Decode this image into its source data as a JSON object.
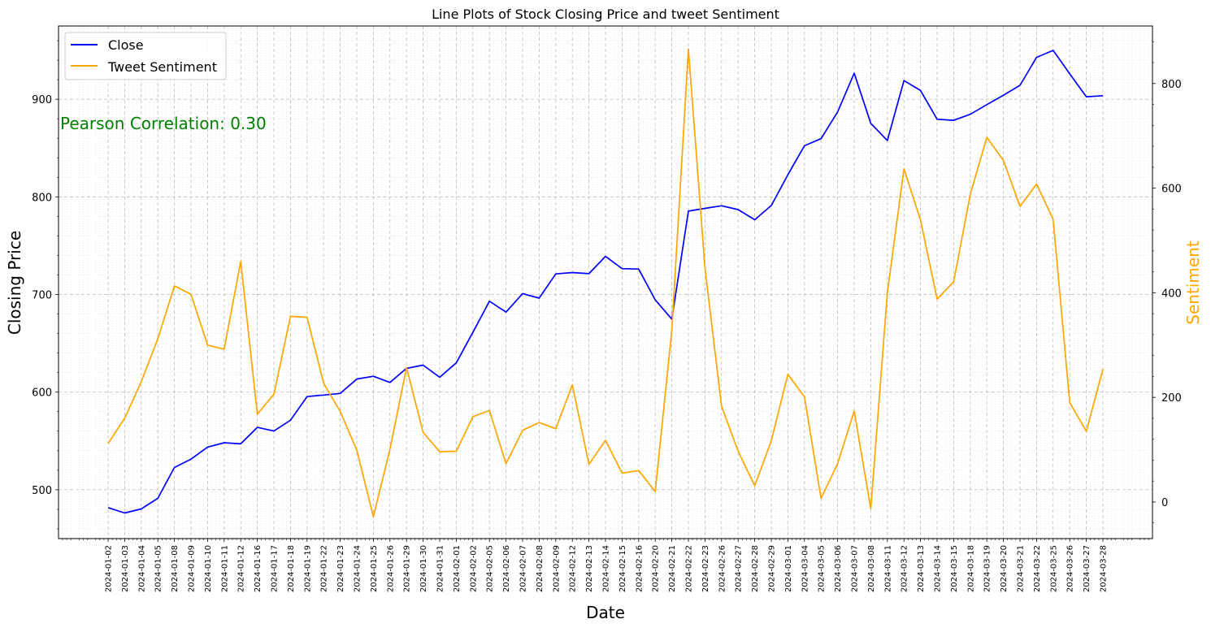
{
  "chart_data": {
    "type": "line",
    "title": "Line Plots of Stock Closing Price and tweet Sentiment",
    "xlabel": "Date",
    "ylabel_left": "Closing Price",
    "ylabel_right": "Sentiment",
    "annotation": "Pearson Correlation: 0.30",
    "legend_position": "top-left",
    "grid": true,
    "ylim_left": [
      450,
      975
    ],
    "ylim_right": [
      -70,
      910
    ],
    "yticks_left": [
      500,
      600,
      700,
      800,
      900
    ],
    "yticks_right": [
      0,
      200,
      400,
      600,
      800
    ],
    "x": [
      "2024-01-02",
      "2024-01-03",
      "2024-01-04",
      "2024-01-05",
      "2024-01-08",
      "2024-01-09",
      "2024-01-10",
      "2024-01-11",
      "2024-01-12",
      "2024-01-16",
      "2024-01-17",
      "2024-01-18",
      "2024-01-19",
      "2024-01-22",
      "2024-01-23",
      "2024-01-24",
      "2024-01-25",
      "2024-01-26",
      "2024-01-29",
      "2024-01-30",
      "2024-01-31",
      "2024-02-01",
      "2024-02-02",
      "2024-02-05",
      "2024-02-06",
      "2024-02-07",
      "2024-02-08",
      "2024-02-09",
      "2024-02-12",
      "2024-02-13",
      "2024-02-14",
      "2024-02-15",
      "2024-02-16",
      "2024-02-20",
      "2024-02-21",
      "2024-02-22",
      "2024-02-23",
      "2024-02-26",
      "2024-02-27",
      "2024-02-28",
      "2024-02-29",
      "2024-03-01",
      "2024-03-04",
      "2024-03-05",
      "2024-03-06",
      "2024-03-07",
      "2024-03-08",
      "2024-03-11",
      "2024-03-12",
      "2024-03-13",
      "2024-03-14",
      "2024-03-15",
      "2024-03-18",
      "2024-03-19",
      "2024-03-20",
      "2024-03-21",
      "2024-03-22",
      "2024-03-25",
      "2024-03-26",
      "2024-03-27",
      "2024-03-28"
    ],
    "series": [
      {
        "name": "Close",
        "axis": "left",
        "color": "#0000ff",
        "values": [
          481.7,
          476.2,
          480.4,
          491.3,
          522.8,
          531.4,
          543.7,
          548.2,
          547.0,
          563.9,
          560.2,
          571.2,
          595.4,
          597.0,
          598.7,
          613.4,
          616.2,
          609.9,
          624.4,
          627.6,
          615.2,
          630.0,
          661.2,
          693.1,
          682.0,
          700.9,
          696.3,
          721.1,
          722.5,
          721.3,
          739.0,
          726.5,
          726.1,
          694.5,
          674.7,
          785.4,
          788.2,
          790.9,
          787.0,
          776.6,
          791.1,
          822.7,
          852.4,
          859.6,
          887.0,
          926.7,
          875.3,
          857.7,
          919.1,
          908.9,
          879.5,
          878.4,
          884.6,
          894.5,
          904.1,
          914.3,
          942.9,
          950.0,
          926.0,
          902.5,
          903.6
        ]
      },
      {
        "name": "Tweet Sentiment",
        "axis": "right",
        "color": "#ffa500",
        "values": [
          112,
          160,
          230,
          312,
          413,
          397,
          300,
          292,
          460,
          168,
          206,
          355,
          353,
          227,
          173,
          99,
          -28,
          101,
          257,
          133,
          96,
          97,
          163,
          175,
          73,
          137,
          152,
          140,
          224,
          72,
          118,
          55,
          60,
          20,
          328,
          866,
          447,
          183,
          97,
          31,
          117,
          244,
          201,
          7,
          73,
          174,
          -13,
          400,
          637,
          539,
          388,
          421,
          588,
          697,
          653,
          565,
          608,
          540,
          190,
          135,
          254
        ]
      }
    ]
  }
}
